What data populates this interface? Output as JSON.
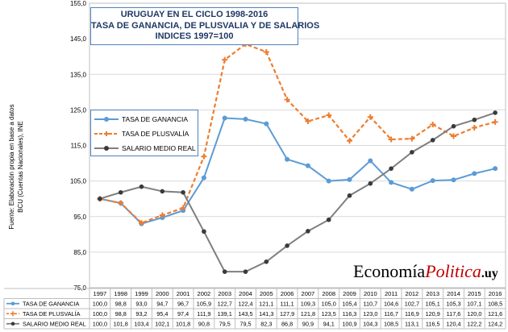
{
  "chart_data": {
    "type": "line",
    "title_lines": [
      "URUGUAY EN EL CICLO 1998-2016",
      "TASA DE GANANCIA, DE PLUSVALIA Y DE SALARIOS",
      "INDICES 1997=100"
    ],
    "categories": [
      "1997",
      "1998",
      "1999",
      "2000",
      "2001",
      "2002",
      "2003",
      "2004",
      "2005",
      "2006",
      "2007",
      "2008",
      "2009",
      "2010",
      "2011",
      "2012",
      "2013",
      "2014",
      "2015",
      "2016"
    ],
    "ylim": [
      75,
      155
    ],
    "yticks": [
      "75,0",
      "85,0",
      "95,0",
      "105,0",
      "115,0",
      "125,0",
      "135,0",
      "145,0",
      "155,0"
    ],
    "grid": true,
    "legend_position": "left",
    "series": [
      {
        "name": "TASA DE GANANCIA",
        "color": "#5b9bd5",
        "marker": "circle",
        "values": [
          100.0,
          98.8,
          93.0,
          94.7,
          96.7,
          105.9,
          122.7,
          122.4,
          121.1,
          111.1,
          109.3,
          105.0,
          105.4,
          110.7,
          104.6,
          102.7,
          105.1,
          105.3,
          107.1,
          108.5
        ],
        "labels": [
          "100,0",
          "98,8",
          "93,0",
          "94,7",
          "96,7",
          "105,9",
          "122,7",
          "122,4",
          "121,1",
          "111,1",
          "109,3",
          "105,0",
          "105,4",
          "110,7",
          "104,6",
          "102,7",
          "105,1",
          "105,3",
          "107,1",
          "108,5"
        ]
      },
      {
        "name": "TASA DE PLUSVALÍA",
        "color": "#ed7d31",
        "marker": "plus",
        "values": [
          100.0,
          98.8,
          93.2,
          95.4,
          97.4,
          111.9,
          139.1,
          143.5,
          141.3,
          127.9,
          121.8,
          123.5,
          116.3,
          123.0,
          116.7,
          116.9,
          120.9,
          117.6,
          120.0,
          121.6
        ],
        "labels": [
          "100,0",
          "98,8",
          "93,2",
          "95,4",
          "97,4",
          "111,9",
          "139,1",
          "143,5",
          "141,3",
          "127,9",
          "121,8",
          "123,5",
          "116,3",
          "123,0",
          "116,7",
          "116,9",
          "120,9",
          "117,6",
          "120,0",
          "121,6"
        ]
      },
      {
        "name": "SALARIO MEDIO REAL",
        "color": "#7f7f7f",
        "marker": "circle-dark",
        "values": [
          100.0,
          101.8,
          103.4,
          102.1,
          101.8,
          90.8,
          79.5,
          79.5,
          82.3,
          86.8,
          90.9,
          94.1,
          100.9,
          104.3,
          108.5,
          113.1,
          116.5,
          120.4,
          122.2,
          124.2
        ],
        "labels": [
          "100,0",
          "101,8",
          "103,4",
          "102,1",
          "101,8",
          "90,8",
          "79,5",
          "79,5",
          "82,3",
          "86,8",
          "90,9",
          "94,1",
          "100,9",
          "104,3",
          "108,5",
          "113,1",
          "116,5",
          "120,4",
          "122,2",
          "124,2"
        ]
      }
    ]
  },
  "source_note": "Fuente: Elaboración propia en base a datos BCU (Cuentas Nacionales), INE",
  "brand": {
    "part1": "Economía",
    "part2": "Politica",
    "part3": ".uy"
  }
}
